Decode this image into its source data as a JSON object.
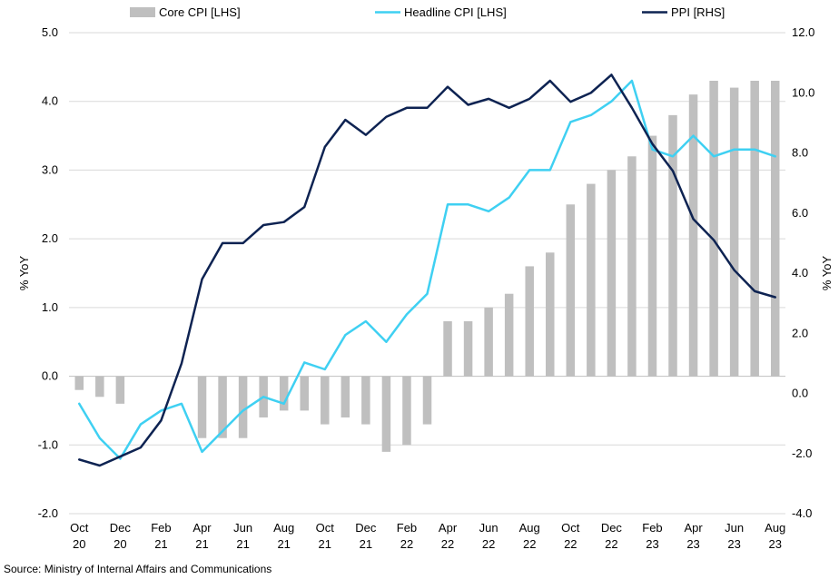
{
  "chart_data": {
    "type": "bar",
    "categories": [
      "Oct 20",
      "Nov 20",
      "Dec 20",
      "Jan 21",
      "Feb 21",
      "Mar 21",
      "Apr 21",
      "May 21",
      "Jun 21",
      "Jul 21",
      "Aug 21",
      "Sep 21",
      "Oct 21",
      "Nov 21",
      "Dec 21",
      "Jan 22",
      "Feb 22",
      "Mar 22",
      "Apr 22",
      "May 22",
      "Jun 22",
      "Jul 22",
      "Aug 22",
      "Sep 22",
      "Oct 22",
      "Nov 22",
      "Dec 22",
      "Jan 23",
      "Feb 23",
      "Mar 23",
      "Apr 23",
      "May 23",
      "Jun 23",
      "Jul 23",
      "Aug 23"
    ],
    "x_tick_labels": [
      {
        "index": 0,
        "line1": "Oct",
        "line2": "20"
      },
      {
        "index": 2,
        "line1": "Dec",
        "line2": "20"
      },
      {
        "index": 4,
        "line1": "Feb",
        "line2": "21"
      },
      {
        "index": 6,
        "line1": "Apr",
        "line2": "21"
      },
      {
        "index": 8,
        "line1": "Jun",
        "line2": "21"
      },
      {
        "index": 10,
        "line1": "Aug",
        "line2": "21"
      },
      {
        "index": 12,
        "line1": "Oct",
        "line2": "21"
      },
      {
        "index": 14,
        "line1": "Dec",
        "line2": "21"
      },
      {
        "index": 16,
        "line1": "Feb",
        "line2": "22"
      },
      {
        "index": 18,
        "line1": "Apr",
        "line2": "22"
      },
      {
        "index": 20,
        "line1": "Jun",
        "line2": "22"
      },
      {
        "index": 22,
        "line1": "Aug",
        "line2": "22"
      },
      {
        "index": 24,
        "line1": "Oct",
        "line2": "22"
      },
      {
        "index": 26,
        "line1": "Dec",
        "line2": "22"
      },
      {
        "index": 28,
        "line1": "Feb",
        "line2": "23"
      },
      {
        "index": 30,
        "line1": "Apr",
        "line2": "23"
      },
      {
        "index": 32,
        "line1": "Jun",
        "line2": "23"
      },
      {
        "index": 34,
        "line1": "Aug",
        "line2": "23"
      }
    ],
    "series": [
      {
        "name": "Core CPI [LHS]",
        "kind": "bar",
        "axis": "left",
        "color": "#bfbfbf",
        "values": [
          -0.2,
          -0.3,
          -0.4,
          0,
          0,
          0,
          -0.9,
          -0.9,
          -0.9,
          -0.6,
          -0.5,
          -0.5,
          -0.7,
          -0.6,
          -0.7,
          -1.1,
          -1.0,
          -0.7,
          0.8,
          0.8,
          1.0,
          1.2,
          1.6,
          1.8,
          2.5,
          2.8,
          3.0,
          3.2,
          3.5,
          3.8,
          4.1,
          4.3,
          4.2,
          4.3,
          4.3
        ]
      },
      {
        "name": "Headline CPI [LHS]",
        "kind": "line",
        "axis": "left",
        "color": "#3fd0f2",
        "values": [
          -0.4,
          -0.9,
          -1.2,
          -0.7,
          -0.5,
          -0.4,
          -1.1,
          -0.8,
          -0.5,
          -0.3,
          -0.4,
          0.2,
          0.1,
          0.6,
          0.8,
          0.5,
          0.9,
          1.2,
          2.5,
          2.5,
          2.4,
          2.6,
          3.0,
          3.0,
          3.7,
          3.8,
          4.0,
          4.3,
          3.3,
          3.2,
          3.5,
          3.2,
          3.3,
          3.3,
          3.2
        ]
      },
      {
        "name": "PPI [RHS]",
        "kind": "line",
        "axis": "right",
        "color": "#0e2352",
        "values": [
          -2.2,
          -2.4,
          -2.1,
          -1.8,
          -0.9,
          1.0,
          3.8,
          5.0,
          5.0,
          5.6,
          5.7,
          6.2,
          8.2,
          9.1,
          8.6,
          9.2,
          9.5,
          9.5,
          10.2,
          9.6,
          9.8,
          9.5,
          9.8,
          10.4,
          9.7,
          10.0,
          10.6,
          9.5,
          8.3,
          7.4,
          5.8,
          5.1,
          4.1,
          3.4,
          3.2
        ]
      }
    ],
    "y_left": {
      "label": "% YoY",
      "min": -2.0,
      "max": 5.0,
      "step": 1.0,
      "ticks": [
        "-2.0",
        "-1.0",
        "0.0",
        "1.0",
        "2.0",
        "3.0",
        "4.0",
        "5.0"
      ]
    },
    "y_right": {
      "label": "% YoY",
      "min": -4.0,
      "max": 12.0,
      "step": 2.0,
      "ticks": [
        "-4.0",
        "-2.0",
        "0.0",
        "2.0",
        "4.0",
        "6.0",
        "8.0",
        "10.0",
        "12.0"
      ]
    },
    "grid": "horizontal",
    "legend_position": "top",
    "source": "Source: Ministry of Internal Affairs and Communications"
  }
}
